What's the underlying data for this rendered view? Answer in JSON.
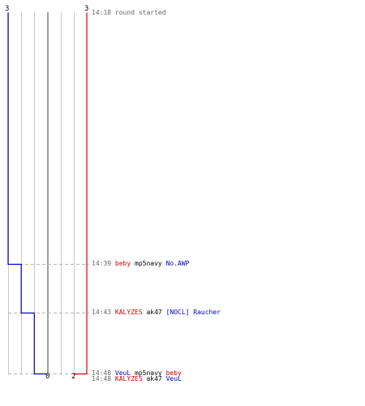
{
  "colors": {
    "team_a": "#cc0000",
    "team_b": "#0000cc",
    "time": "#666666",
    "text": "#000000",
    "grid": "#c8c8c8",
    "center": "#808080",
    "event_line": "#b4b4b4"
  },
  "scores": {
    "team_b_top": "3",
    "team_a_top": "3",
    "team_b_bottom": "0",
    "team_a_bottom": "2"
  },
  "events": [
    {
      "time": "14:18",
      "tokens": [
        {
          "text": "round started",
          "role": "time"
        }
      ],
      "team_b_alive": 3,
      "team_a_alive": 3
    },
    {
      "time": "14:39",
      "tokens": [
        {
          "text": "beby",
          "role": "team_a"
        },
        {
          "text": "mp5navy",
          "role": "text"
        },
        {
          "text": "No.AWP",
          "role": "team_b"
        }
      ],
      "team_b_alive": 2,
      "team_a_alive": 3
    },
    {
      "time": "14:43",
      "tokens": [
        {
          "text": "KALYZES",
          "role": "team_a"
        },
        {
          "text": "ak47",
          "role": "text"
        },
        {
          "text": "[NOCL] Raucher",
          "role": "team_b"
        }
      ],
      "team_b_alive": 1,
      "team_a_alive": 3
    },
    {
      "time": "14:48",
      "tokens": [
        {
          "text": "VeuL",
          "role": "team_b"
        },
        {
          "text": "mp5navy",
          "role": "text"
        },
        {
          "text": "beby",
          "role": "team_a"
        }
      ],
      "team_b_alive": 1,
      "team_a_alive": 2
    },
    {
      "time": "14:48",
      "tokens": [
        {
          "text": "KALYZES",
          "role": "team_a"
        },
        {
          "text": "ak47",
          "role": "text"
        },
        {
          "text": "VeuL",
          "role": "team_b"
        }
      ],
      "team_b_alive": 0,
      "team_a_alive": 2
    }
  ]
}
